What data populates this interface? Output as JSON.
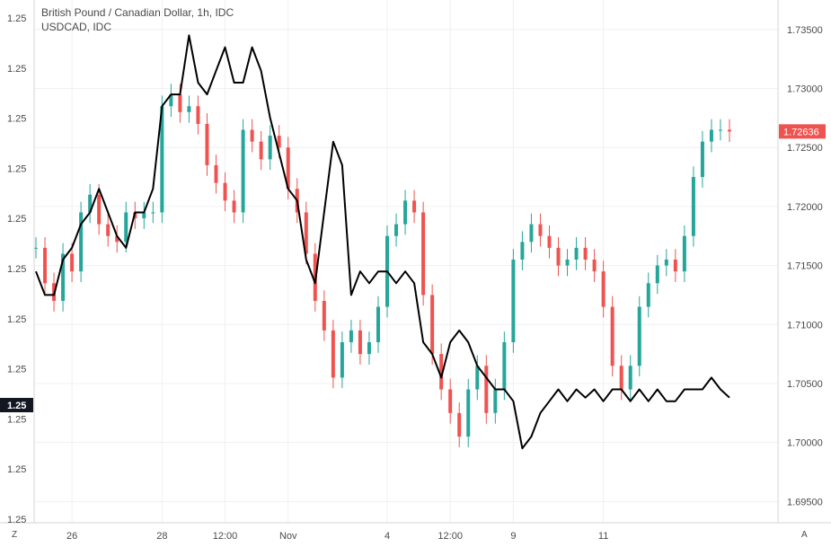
{
  "chart_data": {
    "type": "line",
    "title": "British Pound / Canadian Dollar, 1h, IDC",
    "subtitle": "USDCAD, IDC",
    "series": [
      {
        "name": "British Pound / Canadian Dollar",
        "style": "candles",
        "color_up": "#26a69a",
        "color_down": "#ef5350",
        "x": [
          0,
          4,
          8,
          12,
          16,
          20,
          24,
          28,
          32,
          36,
          40,
          44,
          48,
          52,
          56,
          60,
          64,
          68,
          72,
          76,
          80,
          84,
          88,
          92,
          96,
          100,
          104,
          108,
          112,
          116,
          120,
          124,
          128,
          132,
          136,
          140,
          144,
          148,
          152,
          156,
          160,
          164,
          168,
          172,
          176,
          180,
          184,
          188,
          192,
          196,
          200,
          204,
          208,
          212,
          216,
          220,
          224,
          228,
          232,
          236,
          240,
          244,
          248,
          252,
          256,
          260,
          264,
          268,
          272,
          276,
          280,
          284,
          288,
          292,
          296,
          300,
          304,
          308
        ],
        "close": [
          1.7165,
          1.7135,
          1.712,
          1.716,
          1.7145,
          1.7195,
          1.721,
          1.7185,
          1.7175,
          1.717,
          1.7195,
          1.719,
          1.7195,
          1.7195,
          1.7285,
          1.7295,
          1.728,
          1.7285,
          1.727,
          1.7235,
          1.722,
          1.7205,
          1.7195,
          1.7265,
          1.7255,
          1.724,
          1.726,
          1.725,
          1.7215,
          1.7195,
          1.716,
          1.712,
          1.7095,
          1.7055,
          1.7085,
          1.7095,
          1.7075,
          1.7085,
          1.7115,
          1.7175,
          1.7185,
          1.7205,
          1.7195,
          1.7125,
          1.7075,
          1.7045,
          1.7025,
          1.7005,
          1.7045,
          1.7065,
          1.7025,
          1.7045,
          1.7085,
          1.7155,
          1.717,
          1.7185,
          1.7175,
          1.7165,
          1.715,
          1.7155,
          1.7165,
          1.7155,
          1.7145,
          1.7115,
          1.7065,
          1.7045,
          1.7065,
          1.7115,
          1.7135,
          1.715,
          1.7155,
          1.7145,
          1.7175,
          1.7225,
          1.7255,
          1.7265,
          1.7265,
          1.72636
        ]
      },
      {
        "name": "USDCAD, IDC",
        "style": "line",
        "color": "#000000",
        "x": [
          0,
          4,
          8,
          12,
          16,
          20,
          24,
          28,
          32,
          36,
          40,
          44,
          48,
          52,
          56,
          60,
          64,
          68,
          72,
          76,
          80,
          84,
          88,
          92,
          96,
          100,
          104,
          108,
          112,
          116,
          120,
          124,
          128,
          132,
          136,
          140,
          144,
          148,
          152,
          156,
          160,
          164,
          168,
          172,
          176,
          180,
          184,
          188,
          192,
          196,
          200,
          204,
          208,
          212,
          216,
          220,
          224,
          228,
          232,
          236,
          240,
          244,
          248,
          252,
          256,
          260,
          264,
          268,
          272,
          276,
          280,
          284,
          288,
          292,
          296,
          300,
          304,
          308
        ],
        "value": [
          1.7145,
          1.7125,
          1.7125,
          1.7155,
          1.7165,
          1.7185,
          1.7195,
          1.7215,
          1.7195,
          1.7175,
          1.7165,
          1.7195,
          1.7195,
          1.7215,
          1.7285,
          1.7295,
          1.7295,
          1.7345,
          1.7305,
          1.7295,
          1.7315,
          1.7335,
          1.7305,
          1.7305,
          1.7335,
          1.7315,
          1.7275,
          1.7245,
          1.7215,
          1.7205,
          1.7155,
          1.7135,
          1.7195,
          1.7255,
          1.7235,
          1.7125,
          1.7145,
          1.7135,
          1.7145,
          1.7145,
          1.7135,
          1.7145,
          1.7135,
          1.7085,
          1.7075,
          1.7055,
          1.7085,
          1.7095,
          1.7085,
          1.7065,
          1.7055,
          1.7045,
          1.7045,
          1.7035,
          1.6995,
          1.7005,
          1.7025,
          1.7035,
          1.7045,
          1.7035,
          1.7045,
          1.7038,
          1.7045,
          1.7035,
          1.7045,
          1.7045,
          1.7035,
          1.7045,
          1.7035,
          1.7045,
          1.7035,
          1.7035,
          1.7045,
          1.7045,
          1.7045,
          1.7055,
          1.7045,
          1.7038
        ]
      }
    ],
    "x_tick_labels": [
      "26",
      "28",
      "12:00",
      "Nov",
      "4",
      "12:00",
      "9",
      "11"
    ],
    "x_tick_positions": [
      16,
      56,
      84,
      112,
      156,
      184,
      212,
      252
    ],
    "right_axis": {
      "ticks": [
        1.695,
        1.7,
        1.705,
        1.71,
        1.715,
        1.72,
        1.725,
        1.73,
        1.735
      ],
      "tick_labels": [
        "1.69500",
        "1.70000",
        "1.70500",
        "1.71000",
        "1.71500",
        "1.72000",
        "1.72500",
        "1.73000",
        "1.73500"
      ],
      "range": [
        1.6932,
        1.7375
      ],
      "last_value_label": "1.72636",
      "last_value_color": "#ef5350"
    },
    "left_axis": {
      "tick_labels": [
        "1.25",
        "1.25",
        "1.25",
        "1.25",
        "1.25",
        "1.25",
        "1.25",
        "1.25",
        "1.25",
        "1.25",
        "1.25"
      ],
      "last_value_label": "1.25",
      "last_value_color": "#131722"
    },
    "grid": true,
    "corner_labels": {
      "bottom_left": "Z",
      "bottom_right": "A"
    }
  }
}
